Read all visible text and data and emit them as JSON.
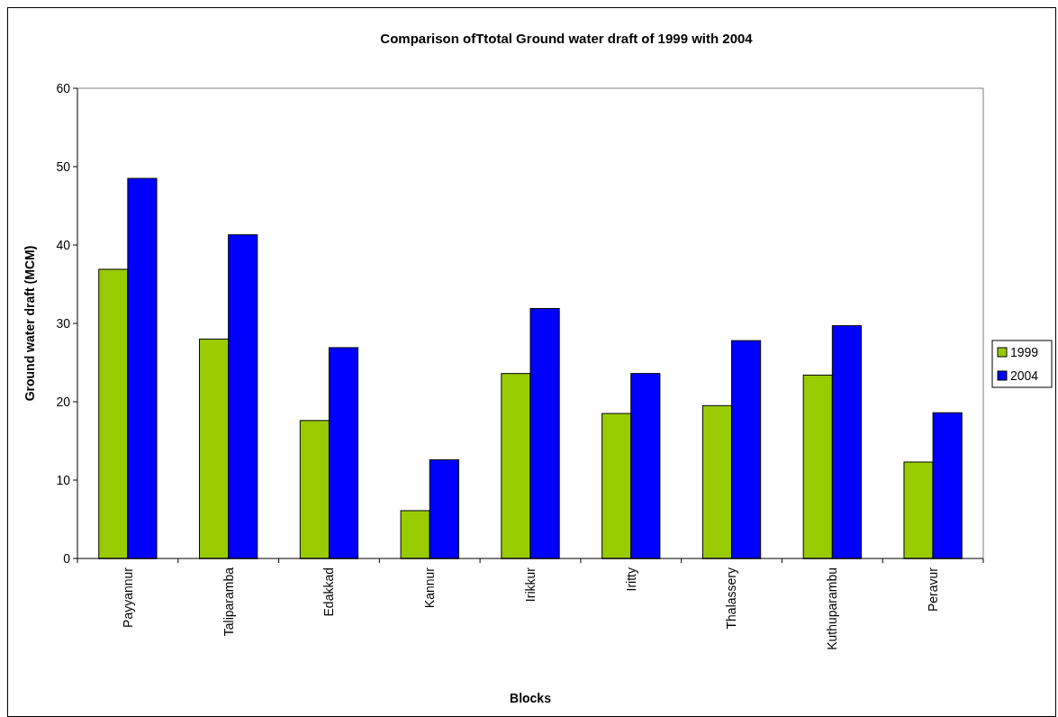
{
  "chart_data": {
    "type": "bar",
    "title": "Comparison ofTtotal Ground water draft of 1999 with 2004",
    "xlabel": "Blocks",
    "ylabel": "Ground water draft (MCM)",
    "categories": [
      "Payyannur",
      "Taliparamba",
      "Edakkad",
      "Kannur",
      "Irikkur",
      "Iritty",
      "Thalassery",
      "Kuthuparambu",
      "Peravur"
    ],
    "series": [
      {
        "name": "1999",
        "color": "#99cc00",
        "values": [
          36.9,
          28.0,
          17.6,
          6.1,
          23.6,
          18.5,
          19.5,
          23.4,
          12.3
        ]
      },
      {
        "name": "2004",
        "color": "#0000ff",
        "values": [
          48.5,
          41.3,
          26.9,
          12.6,
          31.9,
          23.6,
          27.8,
          29.7,
          18.6
        ]
      }
    ],
    "ylim": [
      0,
      60
    ],
    "yticks": [
      0,
      10,
      20,
      30,
      40,
      50,
      60
    ],
    "grid": false,
    "legend": "right"
  }
}
